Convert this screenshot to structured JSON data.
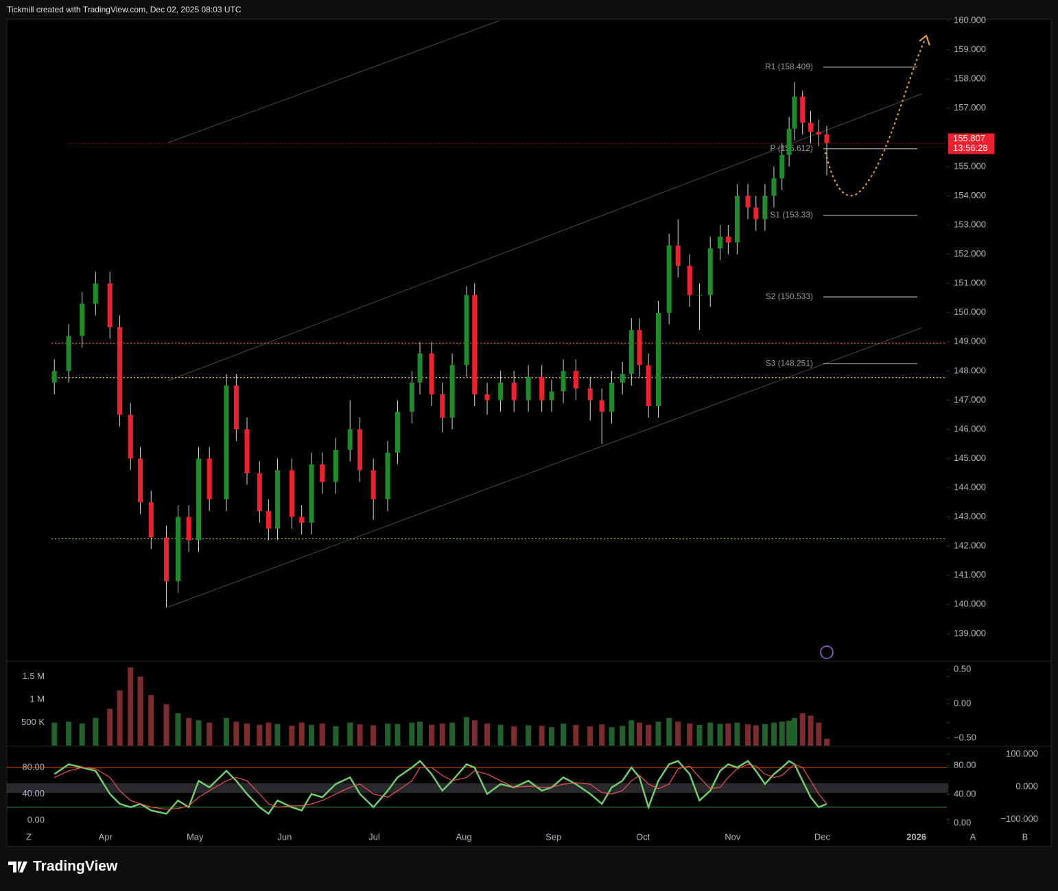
{
  "header": "Tickmill created with TradingView.com, Dec 02, 2025 08:03 UTC",
  "footer": "TradingView",
  "ui": [
    "Z",
    "A",
    "B"
  ],
  "chart_data": [
    {
      "type": "candlestick",
      "x": [
        3.43,
        3.59,
        3.74,
        3.89,
        4.05,
        4.16,
        4.28,
        4.39,
        4.51,
        4.68,
        4.81,
        4.93,
        5.04,
        5.16,
        5.35,
        5.46,
        5.58,
        5.72,
        5.82,
        5.92,
        6.08,
        6.19,
        6.3,
        6.42,
        6.57,
        6.73,
        6.84,
        6.99,
        7.15,
        7.26,
        7.42,
        7.51,
        7.64,
        7.76,
        7.87,
        8.03,
        8.12,
        8.26,
        8.41,
        8.56,
        8.72,
        8.87,
        8.98,
        9.11,
        9.25,
        9.41,
        9.54,
        9.65,
        9.77,
        9.87,
        9.96,
        10.06,
        10.17,
        10.29,
        10.39,
        10.52,
        10.63,
        10.75,
        10.86,
        10.95,
        11.05,
        11.17,
        11.26,
        11.36,
        11.46,
        11.55,
        11.63,
        11.69,
        11.78,
        11.87,
        11.96,
        12.05
      ],
      "open": [
        147.6,
        148.0,
        149.2,
        150.3,
        151.0,
        149.5,
        146.5,
        145.0,
        143.5,
        142.3,
        140.8,
        143.0,
        142.2,
        145.0,
        143.6,
        147.5,
        146.0,
        144.5,
        143.2,
        142.6,
        144.6,
        143.0,
        142.8,
        144.8,
        144.2,
        145.3,
        146.0,
        144.6,
        143.6,
        145.2,
        146.6,
        147.6,
        148.6,
        147.2,
        146.4,
        148.2,
        150.6,
        147.2,
        147.0,
        147.6,
        147.0,
        147.8,
        147.0,
        147.3,
        148.0,
        147.4,
        147.0,
        146.6,
        147.6,
        147.9,
        149.4,
        148.2,
        146.8,
        150.0,
        152.3,
        151.6,
        150.6,
        150.6,
        152.2,
        152.6,
        152.4,
        154.0,
        153.6,
        153.2,
        154.0,
        154.6,
        155.4,
        156.3,
        157.4,
        156.5,
        156.2,
        156.1
      ],
      "high": [
        148.4,
        149.6,
        150.7,
        151.4,
        151.4,
        149.9,
        146.9,
        145.4,
        143.9,
        142.7,
        143.4,
        143.4,
        145.4,
        145.4,
        147.9,
        147.9,
        146.4,
        144.9,
        143.6,
        145.0,
        145.0,
        143.4,
        145.2,
        145.2,
        145.7,
        147.0,
        146.4,
        145.0,
        145.6,
        147.0,
        148.0,
        149.0,
        149.0,
        147.6,
        148.6,
        150.9,
        151.0,
        147.6,
        148.0,
        148.0,
        148.2,
        148.2,
        147.7,
        148.4,
        148.4,
        147.8,
        147.4,
        148.0,
        148.3,
        149.8,
        149.8,
        148.6,
        150.4,
        152.7,
        153.2,
        152.0,
        151.0,
        152.6,
        153.0,
        153.0,
        154.4,
        154.4,
        154.0,
        154.4,
        155.0,
        155.8,
        156.7,
        157.9,
        157.6,
        156.9,
        156.6,
        156.4
      ],
      "low": [
        147.2,
        147.6,
        148.8,
        149.9,
        149.1,
        146.1,
        144.6,
        143.1,
        141.9,
        139.9,
        140.4,
        141.8,
        141.8,
        143.2,
        143.2,
        145.6,
        144.1,
        142.8,
        142.2,
        142.2,
        142.6,
        142.4,
        142.4,
        143.8,
        143.8,
        144.9,
        144.2,
        142.9,
        143.2,
        144.8,
        146.2,
        147.2,
        146.8,
        145.9,
        146.0,
        147.8,
        146.8,
        146.5,
        146.6,
        146.6,
        146.6,
        146.6,
        146.6,
        146.9,
        147.0,
        146.3,
        145.5,
        146.2,
        147.2,
        147.5,
        147.8,
        146.4,
        146.4,
        149.6,
        151.2,
        150.2,
        149.4,
        150.2,
        151.8,
        152.0,
        152.0,
        153.2,
        152.8,
        152.8,
        153.6,
        154.2,
        155.0,
        155.9,
        156.1,
        155.8,
        155.7,
        154.7
      ],
      "close": [
        148.0,
        149.2,
        150.3,
        151.0,
        149.5,
        146.5,
        145.0,
        143.5,
        142.3,
        140.8,
        143.0,
        142.2,
        145.0,
        143.6,
        147.5,
        146.0,
        144.5,
        143.2,
        142.6,
        144.6,
        143.0,
        142.8,
        144.8,
        144.2,
        145.3,
        146.0,
        144.6,
        143.6,
        145.2,
        146.6,
        147.6,
        148.6,
        147.2,
        146.4,
        148.2,
        150.6,
        147.2,
        147.0,
        147.6,
        147.0,
        147.8,
        147.0,
        147.3,
        148.0,
        147.4,
        147.0,
        146.6,
        147.6,
        147.9,
        149.4,
        148.2,
        146.8,
        150.0,
        152.3,
        151.6,
        150.6,
        150.6,
        152.2,
        152.6,
        152.4,
        154.0,
        153.6,
        153.2,
        154.0,
        154.6,
        155.4,
        156.3,
        157.4,
        156.5,
        156.2,
        156.1,
        155.807
      ],
      "up_color": "#1e8c2a",
      "down_color": "#f0212e",
      "wick_color": "#d8d8d8",
      "xlim": [
        2.9,
        13.39
      ],
      "xticks": [
        {
          "value": 4,
          "label": "Apr"
        },
        {
          "value": 5,
          "label": "May"
        },
        {
          "value": 6,
          "label": "Jun"
        },
        {
          "value": 7,
          "label": "Jul"
        },
        {
          "value": 8,
          "label": "Aug"
        },
        {
          "value": 9,
          "label": "Sep"
        },
        {
          "value": 10,
          "label": "Oct"
        },
        {
          "value": 11,
          "label": "Nov"
        },
        {
          "value": 12,
          "label": "Dec"
        },
        {
          "value": 13.05,
          "label": "2026"
        }
      ],
      "ylim": [
        138.08,
        160.05
      ],
      "yticks": [
        {
          "value": 139,
          "label": "139.000"
        },
        {
          "value": 140,
          "label": "140.000"
        },
        {
          "value": 141,
          "label": "141.000"
        },
        {
          "value": 142,
          "label": "142.000"
        },
        {
          "value": 143,
          "label": "143.000"
        },
        {
          "value": 144,
          "label": "144.000"
        },
        {
          "value": 145,
          "label": "145.000"
        },
        {
          "value": 146,
          "label": "146.000"
        },
        {
          "value": 147,
          "label": "147.000"
        },
        {
          "value": 148,
          "label": "148.000"
        },
        {
          "value": 149,
          "label": "149.000"
        },
        {
          "value": 150,
          "label": "150.000"
        },
        {
          "value": 151,
          "label": "151.000"
        },
        {
          "value": 152,
          "label": "152.000"
        },
        {
          "value": 153,
          "label": "153.000"
        },
        {
          "value": 154,
          "label": "154.000"
        },
        {
          "value": 155,
          "label": "155.000"
        },
        {
          "value": 156,
          "label": "156.000"
        },
        {
          "value": 157,
          "label": "157.000"
        },
        {
          "value": 158,
          "label": "158.000"
        },
        {
          "value": 159,
          "label": "159.000"
        },
        {
          "value": 160,
          "label": "160.000"
        }
      ],
      "last_price": 155.807,
      "last_price_color": "#f0212e",
      "countdown": "13:56:28",
      "pivots": [
        {
          "label": "R1 (158.409)",
          "value": 158.409
        },
        {
          "label": "P (155.612)",
          "value": 155.612
        },
        {
          "label": "S1 (153.33)",
          "value": 153.33
        },
        {
          "label": "S2 (150.533)",
          "value": 150.533
        },
        {
          "label": "S3 (148.251)",
          "value": 148.251
        }
      ],
      "levels": [
        {
          "value": 148.95,
          "color": "#e8571e"
        },
        {
          "value": 147.77,
          "color": "#f5c842"
        },
        {
          "value": 142.25,
          "color": "#8bc34a"
        }
      ]
    },
    {
      "type": "bar",
      "values": [
        500000,
        520000,
        480000,
        600000,
        800000,
        1200000,
        1700000,
        1500000,
        1100000,
        900000,
        700000,
        600000,
        550000,
        500000,
        600000,
        520000,
        480000,
        450000,
        500000,
        470000,
        430000,
        500000,
        450000,
        480000,
        420000,
        500000,
        460000,
        440000,
        480000,
        470000,
        500000,
        520000,
        450000,
        480000,
        500000,
        620000,
        550000,
        480000,
        450000,
        420000,
        440000,
        430000,
        400000,
        480000,
        450000,
        420000,
        460000,
        400000,
        430000,
        550000,
        500000,
        450000,
        520000,
        600000,
        520000,
        480000,
        450000,
        500000,
        470000,
        480000,
        500000,
        460000,
        440000,
        470000,
        500000,
        520000,
        540000,
        600000,
        700000,
        650000,
        500000,
        150000
      ],
      "up_color": "#22612c",
      "down_color": "#7c2c2c",
      "ylim": [
        0,
        1820000
      ],
      "yticks": [
        {
          "value": 500000,
          "label": "500 K"
        },
        {
          "value": 1000000,
          "label": "1 M"
        },
        {
          "value": 1500000,
          "label": "1.5 M"
        }
      ],
      "y2lim": [
        -0.61,
        0.61
      ],
      "y2ticks": [
        {
          "value": 0.5,
          "label": "0.50"
        },
        {
          "value": 0,
          "label": "0.00"
        },
        {
          "value": -0.5,
          "label": "−0.50"
        }
      ]
    },
    {
      "type": "line",
      "series": [
        {
          "color": "#6fcf6a",
          "values": [
            70,
            85,
            80,
            75,
            40,
            25,
            20,
            25,
            15,
            10,
            30,
            20,
            60,
            50,
            75,
            60,
            40,
            20,
            10,
            30,
            20,
            15,
            40,
            35,
            55,
            65,
            40,
            20,
            45,
            65,
            80,
            90,
            70,
            45,
            60,
            85,
            80,
            40,
            55,
            50,
            60,
            45,
            50,
            65,
            55,
            40,
            25,
            50,
            60,
            80,
            65,
            20,
            60,
            85,
            90,
            70,
            30,
            45,
            75,
            85,
            80,
            90,
            75,
            55,
            70,
            80,
            90,
            85,
            60,
            35,
            20,
            25
          ]
        },
        {
          "color": "#ef5350",
          "values": [
            65,
            75,
            80,
            78,
            65,
            45,
            30,
            25,
            20,
            17,
            18,
            22,
            35,
            45,
            60,
            65,
            60,
            40,
            25,
            20,
            22,
            22,
            25,
            30,
            40,
            50,
            55,
            40,
            35,
            45,
            60,
            80,
            80,
            68,
            60,
            65,
            75,
            70,
            60,
            50,
            52,
            50,
            50,
            55,
            57,
            55,
            42,
            40,
            45,
            60,
            68,
            55,
            48,
            55,
            78,
            82,
            65,
            48,
            50,
            65,
            78,
            85,
            82,
            70,
            65,
            68,
            78,
            85,
            80,
            60,
            40,
            25
          ]
        }
      ],
      "ylim": [
        -14.5,
        110.1
      ],
      "yticks": [
        {
          "value": 80,
          "label": "80.00"
        },
        {
          "value": 40,
          "label": "40.00"
        },
        {
          "value": 0,
          "label": "0.00"
        }
      ],
      "y2lim": [
        -132.6,
        120
      ],
      "y2ticks": [
        {
          "value": 100,
          "label": "100.000"
        },
        {
          "value": 0,
          "label": "0.000"
        },
        {
          "value": -100,
          "label": "−100.000"
        }
      ],
      "y3lim": [
        -9.5,
        104.8
      ],
      "y3ticks": [
        {
          "value": 80,
          "label": "80.00"
        },
        {
          "value": 40,
          "label": "40.00"
        },
        {
          "value": 0,
          "label": "0.00"
        }
      ],
      "hlines": [
        {
          "value": 80,
          "color": "#e65100"
        },
        {
          "value": 20,
          "color": "#43a047"
        }
      ]
    }
  ]
}
